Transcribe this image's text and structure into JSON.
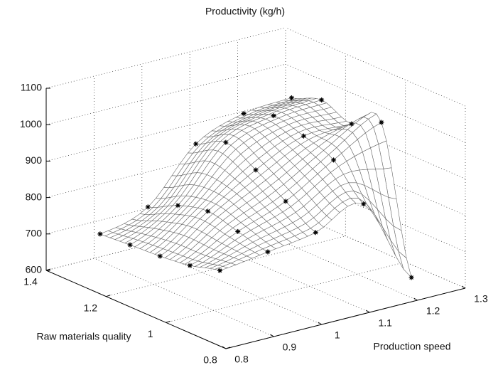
{
  "chart_data": {
    "type": "surface",
    "zlabel": "Productivity (kg/h)",
    "xlabel": "Production speed",
    "ylabel": "Raw materials quality",
    "x": [
      0.85,
      0.95,
      1.05,
      1.15,
      1.25
    ],
    "y": [
      0.9,
      1.0,
      1.1,
      1.2,
      1.3
    ],
    "z": [
      [
        762,
        780,
        800,
        845,
        610
      ],
      [
        740,
        800,
        850,
        930,
        1000
      ],
      [
        730,
        820,
        900,
        960,
        960
      ],
      [
        725,
        800,
        940,
        980,
        990
      ],
      [
        719,
        760,
        900,
        950,
        960
      ]
    ],
    "xlim": [
      0.8,
      1.3
    ],
    "ylim": [
      0.8,
      1.4
    ],
    "zlim": [
      600,
      1100
    ],
    "xticks": [
      0.8,
      0.9,
      1,
      1.1,
      1.2,
      1.3
    ],
    "yticks": [
      0.8,
      1,
      1.2,
      1.4
    ],
    "zticks": [
      600,
      700,
      800,
      900,
      1000,
      1100
    ],
    "grid": true,
    "mesh_color": "#6a6a6a",
    "marker_color": "#000000"
  }
}
